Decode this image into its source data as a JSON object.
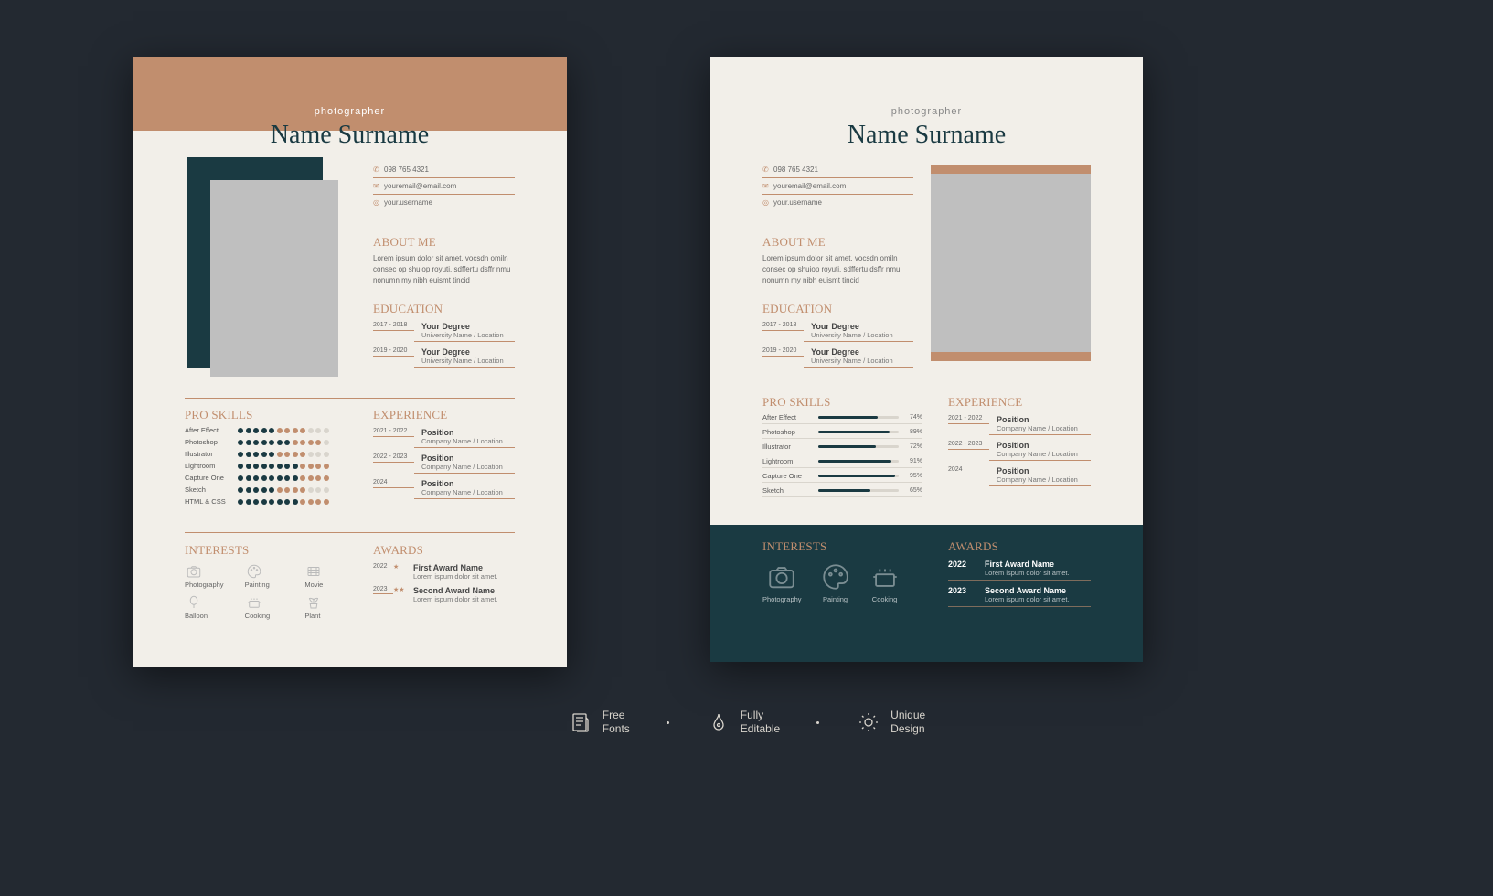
{
  "colors": {
    "background": "#232931",
    "paper": "#f2efe9",
    "accent": "#c18e6e",
    "dark": "#1a3a42",
    "photo_placeholder": "#bfbfbf",
    "text_muted": "#666",
    "icon_muted": "#bbb",
    "footer_icon": "#c9d2d4",
    "footer_text": "#b8c2c5",
    "feature_text": "#d9d5cd"
  },
  "subtitle": "photographer",
  "name": "Name Surname",
  "contact": {
    "phone": "098 765 4321",
    "email": "youremail@email.com",
    "username": "your.username"
  },
  "about": {
    "heading": "ABOUT ME",
    "text": "Lorem ipsum dolor sit amet, vocsdn omiln consec op shuiop royuti. sdffertu dsffr nmu nonumn my nibh euismt tincid"
  },
  "education": {
    "heading": "EDUCATION",
    "items": [
      {
        "year": "2017 - 2018",
        "degree": "Your Degree",
        "sub": "University Name / Location"
      },
      {
        "year": "2019 - 2020",
        "degree": "Your Degree",
        "sub": "University Name / Location"
      }
    ]
  },
  "skills_dots": {
    "heading": "PRO SKILLS",
    "max": 12,
    "items": [
      {
        "name": "After Effect",
        "dark": 5,
        "accent": 4
      },
      {
        "name": "Photoshop",
        "dark": 7,
        "accent": 4
      },
      {
        "name": "Illustrator",
        "dark": 5,
        "accent": 4
      },
      {
        "name": "Lightroom",
        "dark": 8,
        "accent": 4
      },
      {
        "name": "Capture One",
        "dark": 8,
        "accent": 4
      },
      {
        "name": "Sketch",
        "dark": 5,
        "accent": 4
      },
      {
        "name": "HTML & CSS",
        "dark": 8,
        "accent": 4
      }
    ]
  },
  "skills_bars": {
    "heading": "PRO SKILLS",
    "items": [
      {
        "name": "After Effect",
        "pct": 74
      },
      {
        "name": "Photoshop",
        "pct": 89
      },
      {
        "name": "Illustrator",
        "pct": 72
      },
      {
        "name": "Lightroom",
        "pct": 91
      },
      {
        "name": "Capture One",
        "pct": 95
      },
      {
        "name": "Sketch",
        "pct": 65
      }
    ]
  },
  "experience": {
    "heading": "EXPERIENCE",
    "items": [
      {
        "year": "2021 - 2022",
        "title": "Position",
        "sub": "Company Name / Location"
      },
      {
        "year": "2022 - 2023",
        "title": "Position",
        "sub": "Company Name / Location"
      },
      {
        "year": "2024",
        "title": "Position",
        "sub": "Company Name / Location"
      }
    ]
  },
  "interests1": {
    "heading": "INTERESTS",
    "items": [
      {
        "label": "Photography",
        "icon": "camera"
      },
      {
        "label": "Painting",
        "icon": "palette"
      },
      {
        "label": "Movie",
        "icon": "film"
      },
      {
        "label": "Balloon",
        "icon": "balloon"
      },
      {
        "label": "Cooking",
        "icon": "pot"
      },
      {
        "label": "Plant",
        "icon": "plant"
      }
    ]
  },
  "interests2": {
    "heading": "INTERESTS",
    "items": [
      {
        "label": "Photography",
        "icon": "camera"
      },
      {
        "label": "Painting",
        "icon": "palette"
      },
      {
        "label": "Cooking",
        "icon": "pot"
      }
    ]
  },
  "awards1": {
    "heading": "AWARDS",
    "items": [
      {
        "year": "2022",
        "stars": 1,
        "name": "First Award Name",
        "sub": "Lorem ispum dolor sit amet."
      },
      {
        "year": "2023",
        "stars": 2,
        "name": "Second Award Name",
        "sub": "Lorem ispum dolor sit amet."
      }
    ]
  },
  "awards2": {
    "heading": "AWARDS",
    "items": [
      {
        "year": "2022",
        "name": "First Award Name",
        "sub": "Lorem ispum dolor sit amet."
      },
      {
        "year": "2023",
        "name": "Second Award Name",
        "sub": "Lorem ispum dolor sit amet."
      }
    ]
  },
  "features": [
    {
      "icon": "doc",
      "line1": "Free",
      "line2": "Fonts"
    },
    {
      "icon": "pen",
      "line1": "Fully",
      "line2": "Editable"
    },
    {
      "icon": "bulb",
      "line1": "Unique",
      "line2": "Design"
    }
  ]
}
